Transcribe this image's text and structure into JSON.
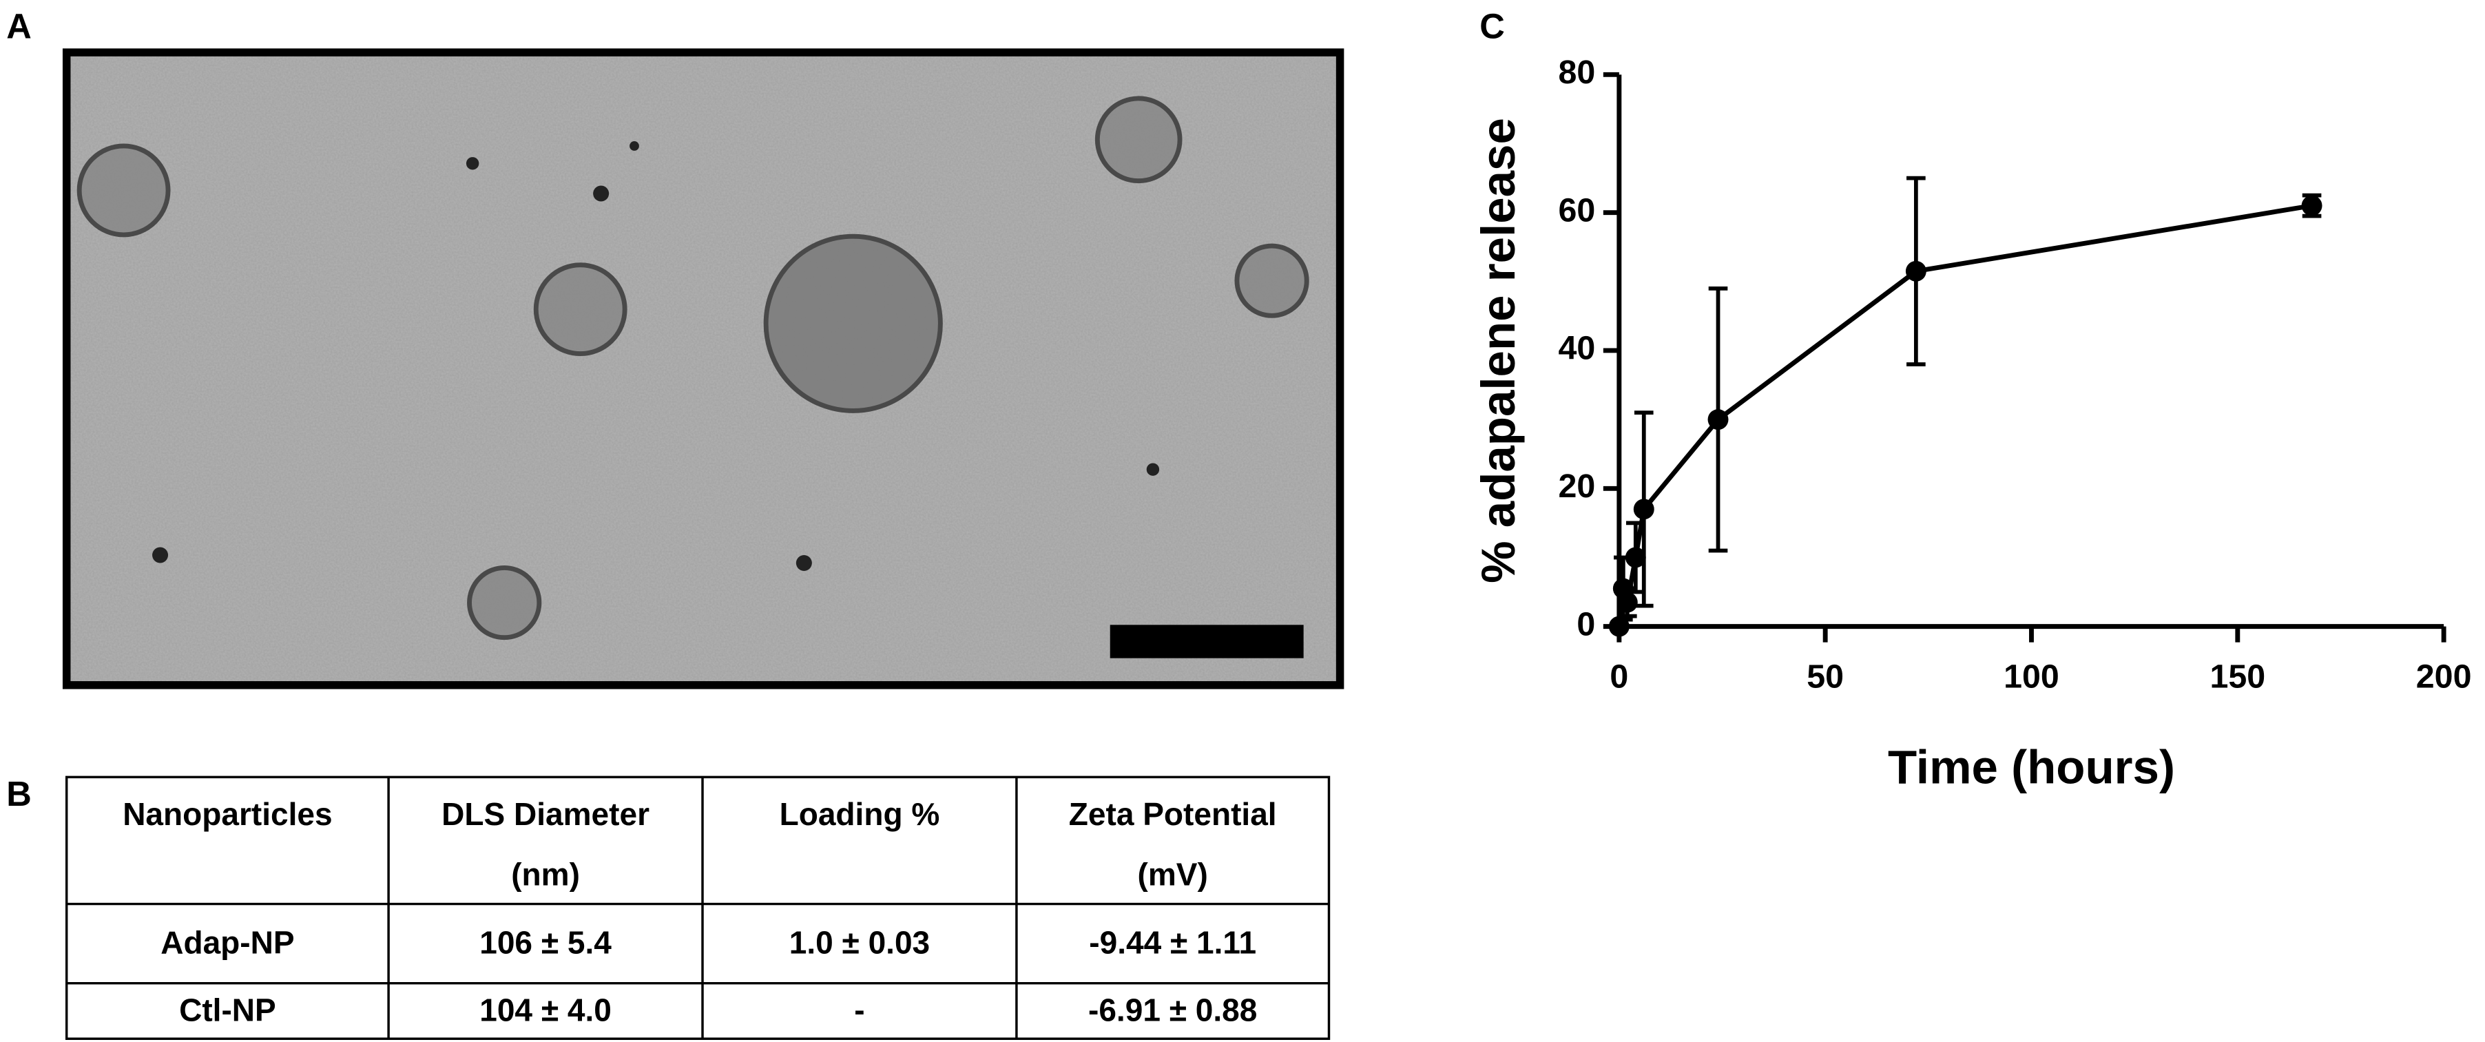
{
  "panel_labels": [
    "A",
    "B",
    "C"
  ],
  "table": {
    "header": [
      [
        "Nanoparticles"
      ],
      [
        "DLS Diameter",
        "(nm)"
      ],
      [
        "Loading %"
      ],
      [
        "Zeta Potential",
        "(mV)"
      ]
    ],
    "rows": [
      [
        "Adap-NP",
        "106 ± 5.4",
        "1.0 ± 0.03",
        "-9.44 ± 1.11"
      ],
      [
        "Ctl-NP",
        "104 ± 4.0",
        "-",
        "-6.91 ± 0.88"
      ]
    ]
  },
  "chart_data": {
    "type": "line",
    "x_label": "Time (hours)",
    "y_label": "% adapalene release",
    "x": [
      0,
      1,
      2,
      4,
      6,
      24,
      72,
      168
    ],
    "series": [
      {
        "color": "#000000",
        "values": [
          0,
          5.5,
          3.5,
          10,
          17,
          30,
          51.5,
          61
        ],
        "errors": [
          0,
          4.5,
          2,
          5,
          14,
          19,
          13.5,
          1.5
        ]
      }
    ],
    "xlim": [
      0,
      200
    ],
    "ylim": [
      0,
      80
    ],
    "xticks": [
      0,
      50,
      100,
      150,
      200
    ],
    "yticks": [
      0,
      20,
      40,
      60,
      80
    ],
    "grid": false
  }
}
